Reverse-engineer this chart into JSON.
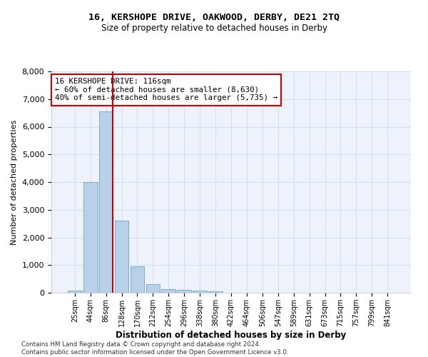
{
  "title1": "16, KERSHOPE DRIVE, OAKWOOD, DERBY, DE21 2TQ",
  "title2": "Size of property relative to detached houses in Derby",
  "xlabel": "Distribution of detached houses by size in Derby",
  "ylabel": "Number of detached properties",
  "bin_labels": [
    "25sqm",
    "44sqm",
    "86sqm",
    "128sqm",
    "170sqm",
    "212sqm",
    "254sqm",
    "296sqm",
    "338sqm",
    "380sqm",
    "422sqm",
    "464sqm",
    "506sqm",
    "547sqm",
    "589sqm",
    "631sqm",
    "673sqm",
    "715sqm",
    "757sqm",
    "799sqm",
    "841sqm"
  ],
  "bar_heights": [
    70,
    4000,
    6550,
    2600,
    950,
    320,
    130,
    110,
    70,
    60,
    0,
    0,
    0,
    0,
    0,
    0,
    0,
    0,
    0,
    0,
    0
  ],
  "bar_color": "#b8d0e8",
  "bar_edge_color": "#6ba3cc",
  "grid_color": "#d0dff0",
  "vline_color": "#cc0000",
  "annotation_text": "16 KERSHOPE DRIVE: 116sqm\n← 60% of detached houses are smaller (8,630)\n40% of semi-detached houses are larger (5,735) →",
  "annotation_box_color": "#ffffff",
  "annotation_box_edge": "#cc0000",
  "ylim": [
    0,
    8000
  ],
  "yticks": [
    0,
    1000,
    2000,
    3000,
    4000,
    5000,
    6000,
    7000,
    8000
  ],
  "footer1": "Contains HM Land Registry data © Crown copyright and database right 2024.",
  "footer2": "Contains public sector information licensed under the Open Government Licence v3.0."
}
